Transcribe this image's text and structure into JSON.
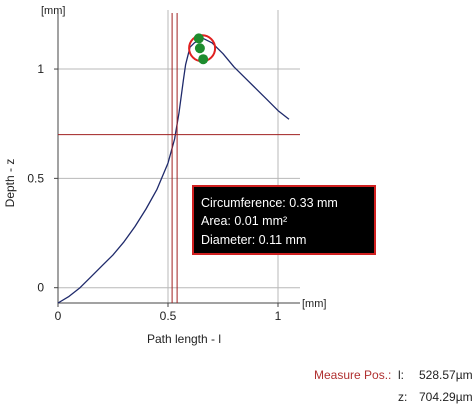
{
  "chart_data": {
    "type": "line",
    "xlabel": "Path length - l",
    "ylabel": "Depth - z",
    "x_unit": "[mm]",
    "y_unit": "[mm]",
    "xlim": [
      0,
      1.1
    ],
    "ylim": [
      -0.07,
      1.27
    ],
    "x_ticks": [
      0,
      0.5,
      1
    ],
    "y_ticks": [
      0,
      0.5,
      1
    ],
    "x_tick_labels": [
      "0",
      "0.5",
      "1"
    ],
    "y_tick_labels": [
      "0",
      "0.5",
      "1"
    ],
    "grid": true,
    "series": [
      {
        "color": "#1f2a6b",
        "x": [
          0,
          0.05,
          0.1,
          0.15,
          0.2,
          0.25,
          0.3,
          0.35,
          0.4,
          0.45,
          0.5,
          0.53,
          0.55,
          0.57,
          0.58,
          0.6,
          0.62,
          0.64,
          0.66,
          0.7,
          0.75,
          0.8,
          0.85,
          0.9,
          0.95,
          1.0,
          1.05
        ],
        "y": [
          -0.07,
          -0.04,
          0.0,
          0.05,
          0.1,
          0.15,
          0.21,
          0.28,
          0.36,
          0.45,
          0.57,
          0.68,
          0.8,
          0.95,
          1.02,
          1.1,
          1.12,
          1.13,
          1.14,
          1.12,
          1.07,
          1.01,
          0.96,
          0.91,
          0.86,
          0.81,
          0.77
        ]
      }
    ],
    "crosshair": {
      "x": 0.53,
      "y": 0.7,
      "color": "#a02020"
    },
    "markers": [
      {
        "x": 0.64,
        "y": 1.14
      },
      {
        "x": 0.645,
        "y": 1.095
      },
      {
        "x": 0.66,
        "y": 1.045
      }
    ],
    "marker_color": "#1e8c2e",
    "circle_mark": {
      "x": 0.655,
      "y": 1.095,
      "color": "#e02020"
    },
    "annotation": {
      "lines": [
        "Circumference: 0.33 mm",
        "Area: 0.01 mm²",
        "Diameter: 0.11 mm"
      ],
      "background": "#000000",
      "border": "#d02020",
      "text_color": "#ffffff"
    }
  },
  "measure": {
    "label": "Measure Pos.:",
    "l_label": "l:",
    "l_value": "528.57µm",
    "z_label": "z:",
    "z_value": "704.29µm"
  },
  "colors": {
    "axis": "#444444",
    "grid": "#b8b8b8"
  }
}
